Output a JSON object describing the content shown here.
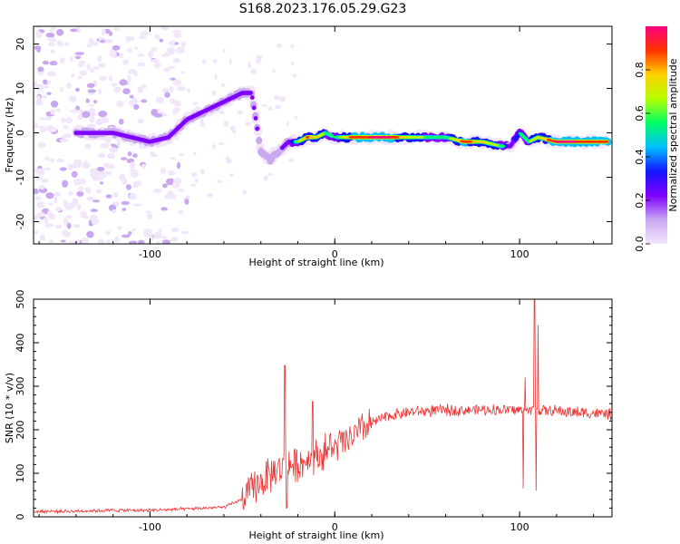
{
  "title": "S168.2023.176.05.29.G23",
  "chart_data": [
    {
      "type": "heatmap",
      "title": "S168.2023.176.05.29.G23",
      "xlabel": "Height of straight line (km)",
      "ylabel": "Frequency (Hz)",
      "xlim": [
        -163,
        150
      ],
      "ylim": [
        -25,
        24
      ],
      "xticks": [
        -100,
        0,
        100
      ],
      "yticks": [
        -20,
        -10,
        0,
        10,
        20
      ],
      "colorbar": {
        "label": "Normalized spectral amplitude",
        "range": [
          0,
          1
        ],
        "ticks": [
          0.0,
          0.2,
          0.4,
          0.6,
          0.8
        ],
        "colormap": [
          "#f2e6fb",
          "#c9a8f0",
          "#7f00ff",
          "#1414ff",
          "#00bfff",
          "#00ff66",
          "#b6ff00",
          "#ffd000",
          "#ff3300",
          "#ff0080"
        ]
      },
      "ridge": {
        "x": [
          -140,
          -130,
          -120,
          -110,
          -100,
          -90,
          -80,
          -70,
          -60,
          -50,
          -45,
          -40,
          -35,
          -30,
          -25,
          -20,
          -15,
          -10,
          -5,
          0,
          10,
          20,
          30,
          40,
          50,
          60,
          70,
          80,
          90,
          95,
          100,
          105,
          110,
          120,
          130,
          140,
          148
        ],
        "y": [
          0,
          0,
          0,
          -1,
          -2,
          -1,
          3,
          5,
          7,
          9,
          9,
          -4,
          -6,
          -4,
          -2,
          -2,
          -1,
          -1,
          0,
          -1,
          -1,
          -1,
          -1,
          -1,
          -1,
          -1,
          -2,
          -2,
          -3,
          -3,
          0,
          -2,
          -1,
          -2,
          -2,
          -2,
          -2
        ],
        "amplitude": [
          0.3,
          0.35,
          0.35,
          0.3,
          0.35,
          0.3,
          0.35,
          0.35,
          0.3,
          0.3,
          0.3,
          0.2,
          0.2,
          0.2,
          0.3,
          0.6,
          0.85,
          0.8,
          0.6,
          0.5,
          0.9,
          0.95,
          0.95,
          0.7,
          0.6,
          0.55,
          0.9,
          0.75,
          0.6,
          0.3,
          0.5,
          0.6,
          0.7,
          0.95,
          0.95,
          0.9,
          0.9
        ]
      },
      "noise_extent_x": [
        -163,
        -80
      ]
    },
    {
      "type": "line",
      "xlabel": "Height of straight line (km)",
      "ylabel": "SNR (10 * v/v)",
      "xlim": [
        -163,
        150
      ],
      "ylim": [
        0,
        500
      ],
      "xticks": [
        -100,
        0,
        100
      ],
      "yticks": [
        0,
        100,
        200,
        300,
        400,
        500
      ],
      "color": "#ee3333",
      "trend": {
        "x": [
          -163,
          -140,
          -120,
          -100,
          -80,
          -60,
          -50,
          -45,
          -40,
          -35,
          -30,
          -25,
          -20,
          -15,
          -10,
          -5,
          0,
          5,
          10,
          15,
          20,
          25,
          30,
          40,
          50,
          60,
          70,
          80,
          90,
          100,
          110,
          120,
          130,
          140,
          150
        ],
        "y": [
          12,
          13,
          15,
          15,
          18,
          22,
          40,
          60,
          80,
          95,
          110,
          120,
          120,
          130,
          140,
          150,
          160,
          170,
          185,
          200,
          215,
          225,
          233,
          240,
          243,
          245,
          245,
          246,
          246,
          245,
          245,
          243,
          240,
          238,
          235
        ]
      },
      "peaks": [
        {
          "x": -27,
          "y": 348
        },
        {
          "x": -26,
          "y": 20
        },
        {
          "x": -12,
          "y": 265
        },
        {
          "x": 102,
          "y": 65
        },
        {
          "x": 103,
          "y": 320
        },
        {
          "x": 108,
          "y": 500
        },
        {
          "x": 109,
          "y": 60
        },
        {
          "x": 110,
          "y": 440
        }
      ]
    }
  ]
}
